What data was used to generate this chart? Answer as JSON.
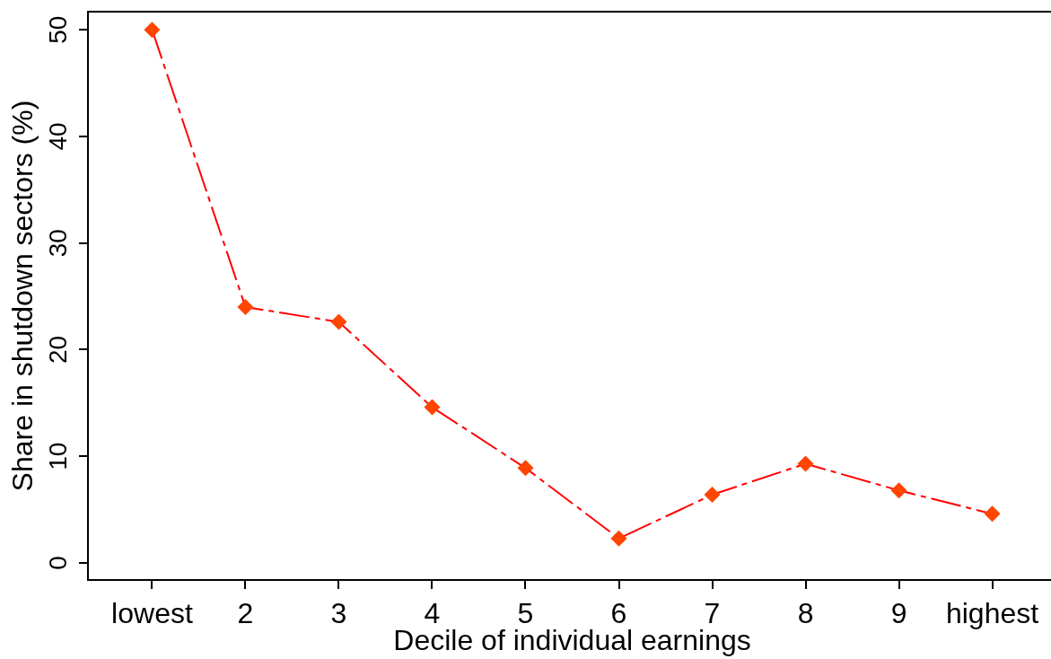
{
  "chart_data": {
    "type": "line",
    "xlabel": "Decile of individual earnings",
    "ylabel": "Share in shutdown sectors (%)",
    "categories": [
      "lowest",
      "2",
      "3",
      "4",
      "5",
      "6",
      "7",
      "8",
      "9",
      "highest"
    ],
    "values": [
      50,
      24,
      22.6,
      14.6,
      8.9,
      2.3,
      6.4,
      9.3,
      6.8,
      4.6
    ],
    "color": "#ff0000",
    "colors": [
      "#ff4500",
      "#ff4500",
      "#ff4500",
      "#ff4500",
      "#ff4500",
      "#ff4500",
      "#ff4500",
      "#ff4500",
      "#ff4500",
      "#ff4500"
    ],
    "marker": "diamond",
    "line_style": "dashed",
    "ylim": [
      -1.6,
      51.7
    ],
    "yticks": [
      0,
      10,
      20,
      30,
      40,
      50
    ]
  }
}
